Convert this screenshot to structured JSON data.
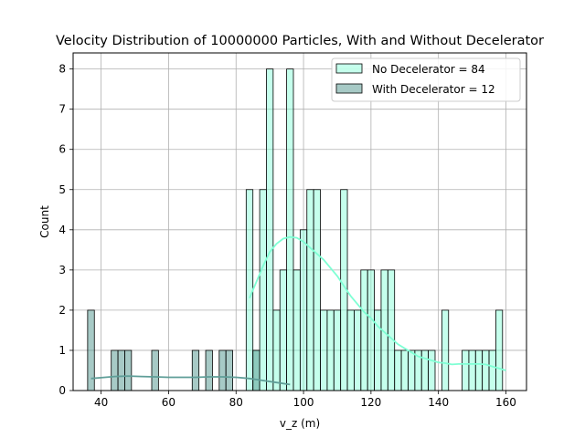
{
  "chart_data": {
    "type": "histogram",
    "title": "Velocity Distribution of 10000000 Particles, With and Without Decelerator",
    "xlabel": "v_z (m)",
    "ylabel": "Count",
    "xlim": [
      31.7,
      166.1
    ],
    "ylim": [
      0,
      8.4
    ],
    "xticks": [
      40,
      60,
      80,
      100,
      120,
      140,
      160
    ],
    "yticks": [
      0,
      1,
      2,
      3,
      4,
      5,
      6,
      7,
      8
    ],
    "grid": true,
    "legend_position": "top-right",
    "bin_width": 2.0,
    "series": [
      {
        "name": "No Decelerator = 84",
        "color": "#7fffd4",
        "bins": [
          {
            "x": 84.0,
            "count": 5
          },
          {
            "x": 86.0,
            "count": 1
          },
          {
            "x": 88.0,
            "count": 5
          },
          {
            "x": 90.0,
            "count": 8
          },
          {
            "x": 92.0,
            "count": 2
          },
          {
            "x": 94.0,
            "count": 3
          },
          {
            "x": 96.0,
            "count": 8
          },
          {
            "x": 98.0,
            "count": 3
          },
          {
            "x": 100.0,
            "count": 4
          },
          {
            "x": 102.0,
            "count": 5
          },
          {
            "x": 104.0,
            "count": 5
          },
          {
            "x": 106.0,
            "count": 2
          },
          {
            "x": 108.0,
            "count": 2
          },
          {
            "x": 110.0,
            "count": 2
          },
          {
            "x": 112.0,
            "count": 5
          },
          {
            "x": 114.0,
            "count": 2
          },
          {
            "x": 116.0,
            "count": 2
          },
          {
            "x": 118.0,
            "count": 3
          },
          {
            "x": 120.0,
            "count": 3
          },
          {
            "x": 122.0,
            "count": 2
          },
          {
            "x": 124.0,
            "count": 3
          },
          {
            "x": 126.0,
            "count": 3
          },
          {
            "x": 128.0,
            "count": 1
          },
          {
            "x": 130.0,
            "count": 1
          },
          {
            "x": 132.0,
            "count": 1
          },
          {
            "x": 134.0,
            "count": 1
          },
          {
            "x": 136.0,
            "count": 1
          },
          {
            "x": 138.0,
            "count": 1
          },
          {
            "x": 142.0,
            "count": 2
          },
          {
            "x": 148.0,
            "count": 1
          },
          {
            "x": 150.0,
            "count": 1
          },
          {
            "x": 152.0,
            "count": 1
          },
          {
            "x": 154.0,
            "count": 1
          },
          {
            "x": 156.0,
            "count": 1
          },
          {
            "x": 158.0,
            "count": 2
          }
        ],
        "kde": [
          [
            84,
            2.3
          ],
          [
            86,
            2.7
          ],
          [
            88,
            3.1
          ],
          [
            90,
            3.45
          ],
          [
            92,
            3.65
          ],
          [
            94,
            3.78
          ],
          [
            96,
            3.82
          ],
          [
            98,
            3.8
          ],
          [
            100,
            3.7
          ],
          [
            102,
            3.55
          ],
          [
            104,
            3.4
          ],
          [
            106,
            3.25
          ],
          [
            108,
            3.05
          ],
          [
            110,
            2.85
          ],
          [
            112,
            2.6
          ],
          [
            114,
            2.35
          ],
          [
            116,
            2.15
          ],
          [
            118,
            1.95
          ],
          [
            120,
            1.8
          ],
          [
            122,
            1.6
          ],
          [
            124,
            1.45
          ],
          [
            126,
            1.3
          ],
          [
            128,
            1.15
          ],
          [
            130,
            1.05
          ],
          [
            132,
            0.95
          ],
          [
            134,
            0.85
          ],
          [
            136,
            0.8
          ],
          [
            138,
            0.75
          ],
          [
            140,
            0.7
          ],
          [
            142,
            0.68
          ],
          [
            144,
            0.65
          ],
          [
            146,
            0.66
          ],
          [
            148,
            0.66
          ],
          [
            150,
            0.66
          ],
          [
            152,
            0.66
          ],
          [
            154,
            0.65
          ],
          [
            156,
            0.6
          ],
          [
            158,
            0.55
          ],
          [
            160,
            0.5
          ]
        ]
      },
      {
        "name": "With Decelerator = 12",
        "color": "#5f9e98",
        "bins": [
          {
            "x": 37.0,
            "count": 2
          },
          {
            "x": 44.0,
            "count": 1
          },
          {
            "x": 46.0,
            "count": 1
          },
          {
            "x": 48.0,
            "count": 1
          },
          {
            "x": 56.0,
            "count": 1
          },
          {
            "x": 68.0,
            "count": 1
          },
          {
            "x": 72.0,
            "count": 1
          },
          {
            "x": 76.0,
            "count": 1
          },
          {
            "x": 78.0,
            "count": 1
          },
          {
            "x": 86.0,
            "count": 1
          }
        ],
        "kde": [
          [
            37,
            0.3
          ],
          [
            40,
            0.32
          ],
          [
            44,
            0.35
          ],
          [
            48,
            0.36
          ],
          [
            52,
            0.35
          ],
          [
            56,
            0.34
          ],
          [
            60,
            0.33
          ],
          [
            64,
            0.33
          ],
          [
            68,
            0.33
          ],
          [
            72,
            0.34
          ],
          [
            76,
            0.34
          ],
          [
            80,
            0.33
          ],
          [
            84,
            0.3
          ],
          [
            88,
            0.25
          ],
          [
            92,
            0.2
          ],
          [
            96,
            0.15
          ]
        ]
      }
    ]
  }
}
